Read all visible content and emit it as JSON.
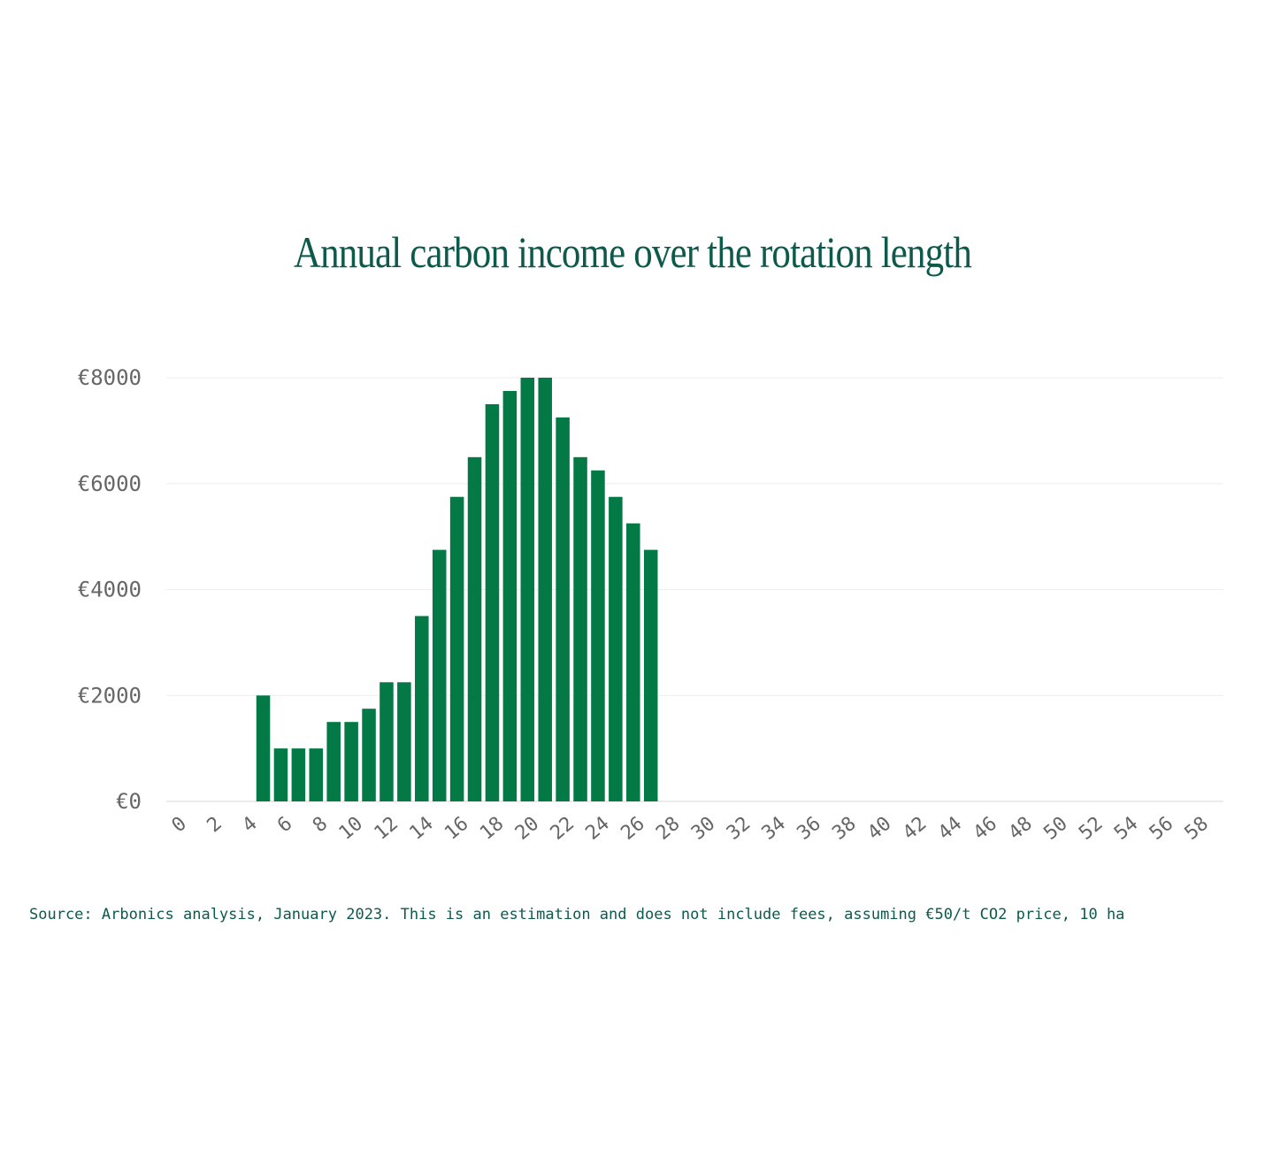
{
  "chart_data": {
    "type": "bar",
    "title": "Annual carbon income over the rotation length",
    "xlabel": "",
    "ylabel": "",
    "y_tick_labels": [
      "€0",
      "€2000",
      "€4000",
      "€6000",
      "€8000"
    ],
    "y_tick_values": [
      0,
      2000,
      4000,
      6000,
      8000
    ],
    "ylim": [
      0,
      8000
    ],
    "x_tick_labels": [
      "0",
      "2",
      "4",
      "6",
      "8",
      "10",
      "12",
      "14",
      "16",
      "18",
      "20",
      "22",
      "24",
      "26",
      "28",
      "30",
      "32",
      "34",
      "36",
      "38",
      "40",
      "42",
      "44",
      "46",
      "48",
      "50",
      "52",
      "54",
      "56",
      "58"
    ],
    "x": [
      0,
      1,
      2,
      3,
      4,
      5,
      6,
      7,
      8,
      9,
      10,
      11,
      12,
      13,
      14,
      15,
      16,
      17,
      18,
      19,
      20,
      21,
      22,
      23,
      24,
      25,
      26,
      27,
      28,
      29,
      30,
      31,
      32,
      33,
      34,
      35,
      36,
      37,
      38,
      39,
      40,
      41,
      42,
      43,
      44,
      45,
      46,
      47,
      48,
      49,
      50,
      51,
      52,
      53,
      54,
      55,
      56,
      57,
      58,
      59
    ],
    "values": [
      0,
      0,
      0,
      0,
      0,
      2000,
      1000,
      1000,
      1000,
      1500,
      1500,
      1750,
      2250,
      2250,
      3500,
      4750,
      5750,
      6500,
      7500,
      7750,
      8000,
      8000,
      7250,
      6500,
      6250,
      5750,
      5250,
      4750,
      0,
      0,
      0,
      0,
      0,
      0,
      0,
      0,
      0,
      0,
      0,
      0,
      0,
      0,
      0,
      0,
      0,
      0,
      0,
      0,
      0,
      0,
      0,
      0,
      0,
      0,
      0,
      0,
      0,
      0,
      0,
      0
    ],
    "grid": true,
    "legend": "none",
    "bar_color": "#037a45"
  },
  "source_note": "Source: Arbonics analysis, January 2023. This is an estimation and does not include fees, assuming €50/t CO2 price, 10 ha"
}
